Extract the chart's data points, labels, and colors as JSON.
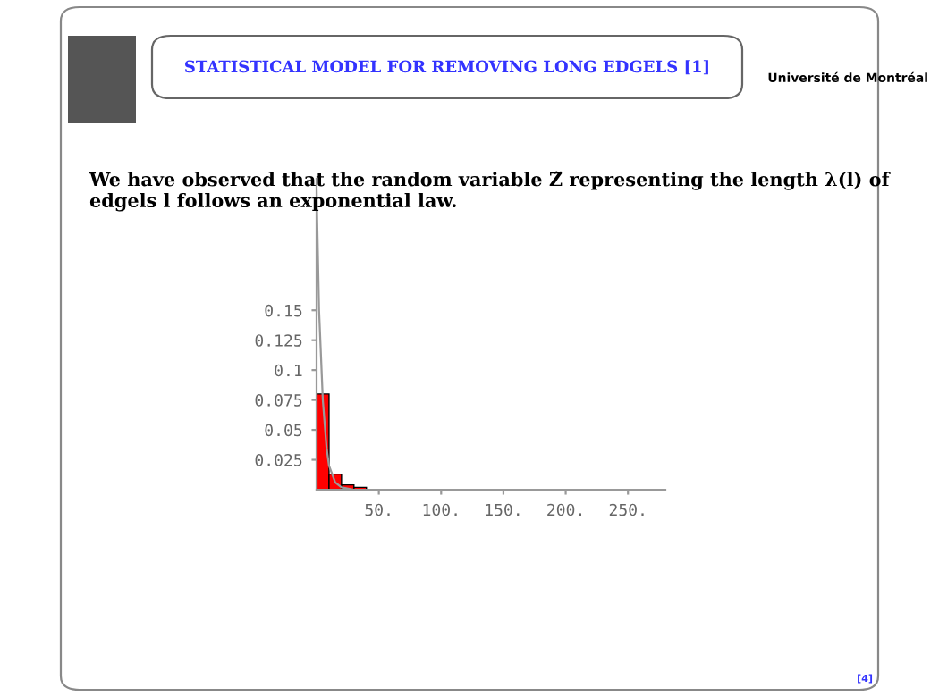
{
  "chart_data": {
    "type": "histogram",
    "title": "STATISTICAL MODEL FOR REMOVING LONG EDGELS [1]",
    "subtitle": "We have observed that the random variable Z̃ representing the length λ(l) of edgels l follows an exponential law.",
    "annotations": [
      "Université de Montréal",
      "[4]"
    ],
    "bins": [
      0,
      10,
      20,
      30,
      40
    ],
    "values": [
      0.08,
      0.013,
      0.004,
      0.002
    ],
    "color": "#ff0000",
    "series": [
      {
        "type": "line",
        "color": "#999999",
        "x": [
          0,
          2,
          5,
          8,
          10,
          15,
          20,
          30,
          50,
          280
        ],
        "values": [
          0.25,
          0.15,
          0.075,
          0.035,
          0.02,
          0.006,
          0.002,
          0,
          0,
          0
        ]
      }
    ],
    "xlim": [
      0,
      280
    ],
    "ylim": [
      0,
      0.26
    ],
    "xticks": [
      {
        "value": 50,
        "label": "50."
      },
      {
        "value": 100,
        "label": "100."
      },
      {
        "value": 150,
        "label": "150."
      },
      {
        "value": 200,
        "label": "200."
      },
      {
        "value": 250,
        "label": "250."
      }
    ],
    "yticks": [
      0.025,
      0.05,
      0.075,
      0.1,
      0.125,
      0.15
    ],
    "grid": false,
    "legend": false
  }
}
